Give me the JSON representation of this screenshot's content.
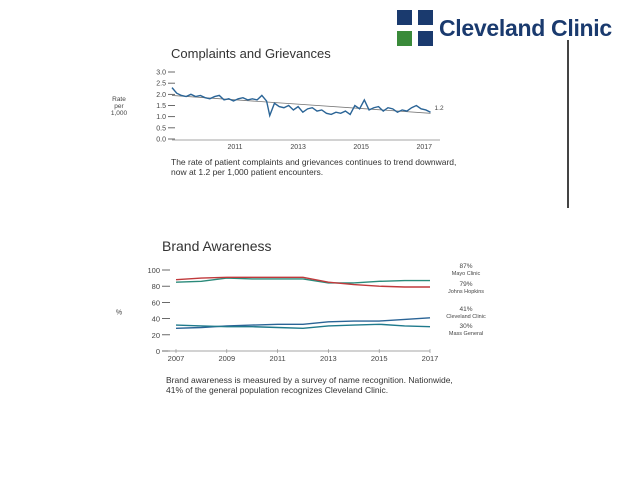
{
  "header": {
    "brand_name": "Cleveland Clinic",
    "brand_color": "#1a3a6e",
    "logo_icon": "cleveland-clinic-cross-logo",
    "logo_colors": [
      "#1a3a6e",
      "#3a8a3a"
    ]
  },
  "chart_data": [
    {
      "type": "line",
      "title": "Complaints and Grievances",
      "ylabel": "Rate per 1,000",
      "ylim": [
        0,
        3
      ],
      "yticks": [
        "0.0",
        "0.5",
        "1.0",
        "1.5",
        "2.0",
        "2.5",
        "3.0"
      ],
      "xlim": [
        2009,
        2017.5
      ],
      "xticks": [
        "2011",
        "2013",
        "2015",
        "2017"
      ],
      "grid": false,
      "x": [
        2009.0,
        2009.15,
        2009.3,
        2009.45,
        2009.6,
        2009.75,
        2009.9,
        2010.05,
        2010.2,
        2010.35,
        2010.5,
        2010.65,
        2010.8,
        2010.95,
        2011.1,
        2011.25,
        2011.4,
        2011.55,
        2011.7,
        2011.85,
        2012.0,
        2012.1,
        2012.25,
        2012.4,
        2012.55,
        2012.7,
        2012.85,
        2013.0,
        2013.15,
        2013.3,
        2013.45,
        2013.6,
        2013.75,
        2013.9,
        2014.05,
        2014.2,
        2014.35,
        2014.5,
        2014.65,
        2014.8,
        2014.95,
        2015.1,
        2015.25,
        2015.4,
        2015.55,
        2015.7,
        2015.85,
        2016.0,
        2016.15,
        2016.3,
        2016.45,
        2016.6,
        2016.75,
        2016.9,
        2017.05,
        2017.2
      ],
      "series": [
        {
          "values": [
            2.3,
            2.05,
            1.95,
            1.9,
            2.0,
            1.9,
            1.95,
            1.85,
            1.8,
            1.9,
            1.95,
            1.75,
            1.8,
            1.7,
            1.8,
            1.85,
            1.75,
            1.8,
            1.75,
            1.95,
            1.7,
            1.05,
            1.6,
            1.45,
            1.4,
            1.5,
            1.3,
            1.45,
            1.2,
            1.35,
            1.4,
            1.25,
            1.3,
            1.15,
            1.1,
            1.2,
            1.15,
            1.25,
            1.1,
            1.5,
            1.35,
            1.75,
            1.3,
            1.4,
            1.45,
            1.25,
            1.4,
            1.35,
            1.2,
            1.3,
            1.25,
            1.4,
            1.5,
            1.35,
            1.3,
            1.2
          ],
          "color": "#2a6496"
        }
      ],
      "trendline": {
        "x": [
          2009.0,
          2017.2
        ],
        "y": [
          1.95,
          1.15
        ],
        "color": "#777777"
      },
      "end_label": "1.2",
      "annotation": "The rate of patient complaints and grievances continues to trend downward, now at 1.2 per 1,000 patient encounters."
    },
    {
      "type": "line",
      "title": "Brand Awareness",
      "ylabel": "%",
      "ylim": [
        0,
        100
      ],
      "yticks": [
        "0",
        "20",
        "40",
        "60",
        "80",
        "100"
      ],
      "xlim": [
        2007,
        2017
      ],
      "xticks": [
        "2007",
        "2009",
        "2011",
        "2013",
        "2015",
        "2017"
      ],
      "grid": false,
      "x": [
        2007,
        2008,
        2009,
        2010,
        2011,
        2012,
        2013,
        2014,
        2015,
        2016,
        2017
      ],
      "series": [
        {
          "values": [
            85,
            86,
            90,
            89,
            89,
            89,
            84,
            84,
            86,
            87,
            87
          ],
          "color": "#2a8a7a",
          "label_value": "87%",
          "label_name": "Mayo Clinic"
        },
        {
          "values": [
            88,
            90,
            91,
            91,
            91,
            91,
            85,
            82,
            80,
            79,
            79
          ],
          "color": "#c0393b",
          "label_value": "79%",
          "label_name": "Johns Hopkins"
        },
        {
          "values": [
            28,
            29,
            31,
            32,
            33,
            33,
            36,
            37,
            37,
            39,
            41
          ],
          "color": "#2a6496",
          "label_value": "41%",
          "label_name": "Cleveland Clinic"
        },
        {
          "values": [
            32,
            31,
            30,
            30,
            29,
            28,
            31,
            32,
            33,
            31,
            30
          ],
          "color": "#1f7a8c",
          "label_value": "30%",
          "label_name": "Mass General"
        }
      ],
      "annotation": "Brand awareness is measured by a survey of name recognition. Nationwide, 41% of the general population recognizes Cleveland Clinic."
    }
  ]
}
